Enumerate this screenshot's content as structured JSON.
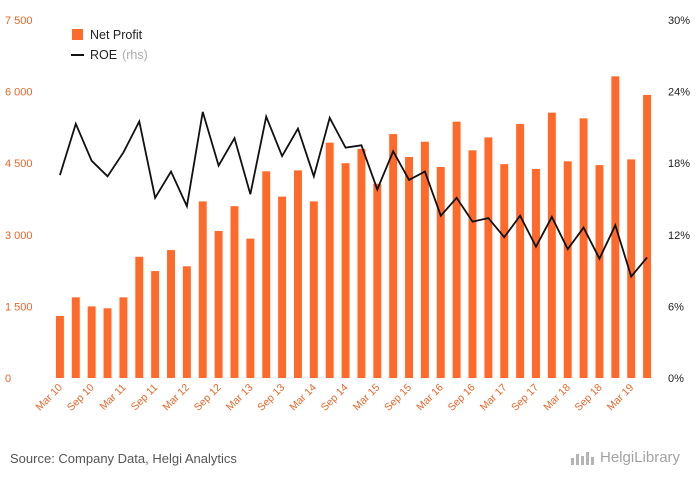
{
  "chart_data": {
    "type": "bar",
    "categories": [
      "Mar 10",
      "Jun 10",
      "Sep 10",
      "Dec 10",
      "Mar 11",
      "Jun 11",
      "Sep 11",
      "Dec 11",
      "Mar 12",
      "Jun 12",
      "Sep 12",
      "Dec 12",
      "Mar 13",
      "Jun 13",
      "Sep 13",
      "Dec 13",
      "Mar 14",
      "Jun 14",
      "Sep 14",
      "Dec 14",
      "Mar 15",
      "Jun 15",
      "Sep 15",
      "Dec 15",
      "Mar 16",
      "Jun 16",
      "Sep 16",
      "Dec 16",
      "Mar 17",
      "Jun 17",
      "Sep 17",
      "Dec 17",
      "Mar 18",
      "Jun 18",
      "Sep 18",
      "Dec 18",
      "Mar 19",
      "Jun 19"
    ],
    "x_tick_labels": [
      "Mar 10",
      "Sep 10",
      "Mar 11",
      "Sep 11",
      "Mar 12",
      "Sep 12",
      "Mar 13",
      "Sep 13",
      "Mar 14",
      "Sep 14",
      "Mar 15",
      "Sep 15",
      "Mar 16",
      "Sep 16",
      "Mar 17",
      "Sep 17",
      "Mar 18",
      "Sep 18",
      "Mar 19"
    ],
    "series": [
      {
        "name": "Net Profit",
        "type": "bar",
        "axis": "left",
        "color": "#ff6a2b",
        "values": [
          1300,
          1690,
          1500,
          1460,
          1690,
          2540,
          2240,
          2680,
          2340,
          3700,
          3080,
          3600,
          2920,
          4330,
          3800,
          4350,
          3700,
          4930,
          4500,
          4800,
          4070,
          5110,
          4630,
          4950,
          4420,
          5370,
          4770,
          5040,
          4480,
          5320,
          4380,
          5560,
          4540,
          5440,
          4460,
          6320,
          4580,
          5930
        ]
      },
      {
        "name": "ROE",
        "name_suffix": "(rhs)",
        "type": "line",
        "axis": "right",
        "color": "#111111",
        "values": [
          17.0,
          21.3,
          18.2,
          16.9,
          18.9,
          21.5,
          15.1,
          17.3,
          14.4,
          22.3,
          17.8,
          20.1,
          15.4,
          21.9,
          18.6,
          20.9,
          16.9,
          21.8,
          19.3,
          19.5,
          15.8,
          19.0,
          16.6,
          17.3,
          13.6,
          15.1,
          13.1,
          13.4,
          11.8,
          13.6,
          11.0,
          13.5,
          10.8,
          12.6,
          10.0,
          12.8,
          8.5,
          10.1
        ]
      }
    ],
    "ylim_left": [
      0,
      7500
    ],
    "yticks_left": [
      "0",
      "1 500",
      "3 000",
      "4 500",
      "6 000",
      "7 500"
    ],
    "ylim_right": [
      0,
      30
    ],
    "yticks_right": [
      "0%",
      "6%",
      "12%",
      "18%",
      "24%",
      "30%"
    ],
    "grid": false,
    "legend_position": "top-left"
  },
  "footer": {
    "source": "Source: Company Data, Helgi Analytics",
    "brand": "HelgiLibrary"
  }
}
